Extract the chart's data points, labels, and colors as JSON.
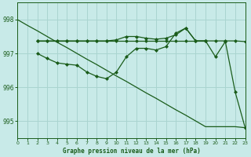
{
  "title": "Graphe pression niveau de la mer (hPa)",
  "bg_color": "#c8eae8",
  "grid_color": "#aad4d0",
  "line_color": "#1a5c1a",
  "xlim": [
    0,
    23
  ],
  "ylim": [
    994.5,
    998.5
  ],
  "yticks": [
    995,
    996,
    997,
    998
  ],
  "xtick_labels": [
    "0",
    "1",
    "2",
    "3",
    "4",
    "5",
    "6",
    "7",
    "8",
    "9",
    "10",
    "11",
    "12",
    "13",
    "14",
    "15",
    "16",
    "17",
    "18",
    "19",
    "20",
    "21",
    "22",
    "23"
  ],
  "series": [
    {
      "x": [
        0,
        1,
        2,
        3,
        4,
        5,
        6,
        7,
        8,
        9,
        10,
        11,
        12,
        13,
        14,
        15,
        16,
        17,
        18,
        19,
        20,
        21,
        22,
        23
      ],
      "y": [
        998.0,
        997.83,
        997.67,
        997.5,
        997.33,
        997.17,
        997.0,
        996.83,
        996.67,
        996.5,
        996.33,
        996.17,
        996.0,
        995.83,
        995.67,
        995.5,
        995.33,
        995.17,
        995.0,
        994.83,
        994.83,
        994.83,
        994.83,
        994.8
      ],
      "marker": null,
      "lw": 0.9
    },
    {
      "x": [
        2,
        3,
        4,
        5,
        6,
        7,
        8,
        9,
        10,
        11,
        12,
        13,
        14,
        15,
        16,
        17,
        18,
        19
      ],
      "y": [
        997.37,
        997.37,
        997.37,
        997.37,
        997.37,
        997.37,
        997.37,
        997.37,
        997.37,
        997.37,
        997.37,
        997.37,
        997.37,
        997.37,
        997.37,
        997.37,
        997.37,
        997.37
      ],
      "marker": "D",
      "lw": 0.9
    },
    {
      "x": [
        2,
        3,
        4,
        5,
        6,
        7,
        8,
        9,
        10,
        11,
        12,
        13,
        14,
        15,
        16,
        17,
        18,
        19,
        20,
        21,
        22,
        23
      ],
      "y": [
        997.37,
        997.37,
        997.37,
        997.37,
        997.37,
        997.37,
        997.37,
        997.37,
        997.4,
        997.5,
        997.5,
        997.45,
        997.42,
        997.45,
        997.55,
        997.75,
        997.37,
        997.37,
        997.37,
        997.37,
        997.37,
        997.35
      ],
      "marker": "D",
      "lw": 0.9
    },
    {
      "x": [
        2,
        3,
        4,
        5,
        6,
        7,
        8,
        9,
        10,
        11,
        12,
        13,
        14,
        15,
        16,
        17,
        18,
        19,
        20,
        21,
        22,
        23
      ],
      "y": [
        997.0,
        996.85,
        996.72,
        996.68,
        996.65,
        996.45,
        996.32,
        996.25,
        996.45,
        996.9,
        997.15,
        997.15,
        997.1,
        997.2,
        997.6,
        997.75,
        997.37,
        997.37,
        996.9,
        997.35,
        995.85,
        994.8
      ],
      "marker": "D",
      "lw": 0.9
    }
  ]
}
